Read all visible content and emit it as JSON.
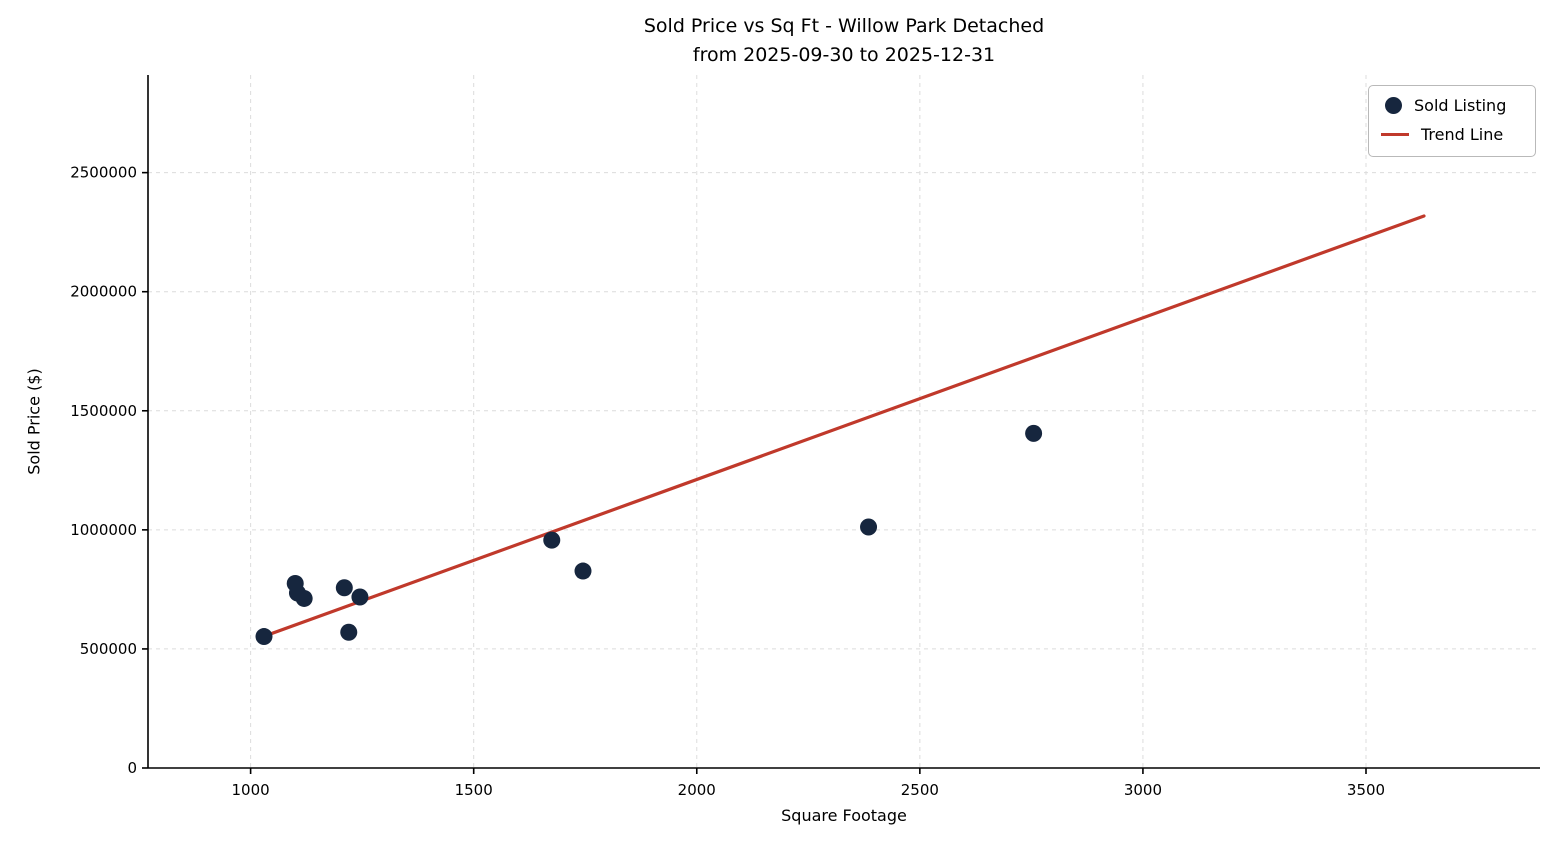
{
  "title": {
    "line1": "Sold Price vs Sq Ft - Willow Park Detached",
    "line2": "from 2025-09-30 to 2025-12-31"
  },
  "axes": {
    "xlabel": "Square Footage",
    "ylabel": "Sold Price ($)"
  },
  "legend": {
    "items": [
      {
        "label": "Sold Listing",
        "marker": "dot",
        "color": "#16263e"
      },
      {
        "label": "Trend Line",
        "marker": "line",
        "color": "#c0392b"
      }
    ]
  },
  "colors": {
    "point": "#16263e",
    "trend": "#c0392b",
    "grid": "#dcdcdc",
    "spine": "#000000",
    "background": "#ffffff"
  },
  "chart_data": {
    "type": "scatter",
    "title": "Sold Price vs Sq Ft - Willow Park Detached\nfrom 2025-09-30 to 2025-12-31",
    "xlabel": "Square Footage",
    "ylabel": "Sold Price ($)",
    "xlim": [
      770,
      3890
    ],
    "ylim": [
      0,
      2910000
    ],
    "x_ticks": [
      1000,
      1500,
      2000,
      2500,
      3000,
      3500
    ],
    "y_ticks": [
      0,
      500000,
      1000000,
      1500000,
      2000000,
      2500000
    ],
    "grid": true,
    "legend_position": "upper right",
    "series": [
      {
        "name": "Sold Listing",
        "type": "scatter",
        "color": "#16263e",
        "points": [
          {
            "sqft": 1030,
            "price": 552000
          },
          {
            "sqft": 1100,
            "price": 775000
          },
          {
            "sqft": 1105,
            "price": 735000
          },
          {
            "sqft": 1120,
            "price": 712000
          },
          {
            "sqft": 1210,
            "price": 757000
          },
          {
            "sqft": 1245,
            "price": 718000
          },
          {
            "sqft": 1220,
            "price": 570000
          },
          {
            "sqft": 1675,
            "price": 957000
          },
          {
            "sqft": 1745,
            "price": 827000
          },
          {
            "sqft": 2385,
            "price": 1012000
          },
          {
            "sqft": 2755,
            "price": 1405000
          }
        ]
      },
      {
        "name": "Trend Line",
        "type": "line",
        "color": "#c0392b",
        "points": [
          {
            "sqft": 1030,
            "price": 553000
          },
          {
            "sqft": 3630,
            "price": 2318000
          }
        ]
      }
    ]
  }
}
